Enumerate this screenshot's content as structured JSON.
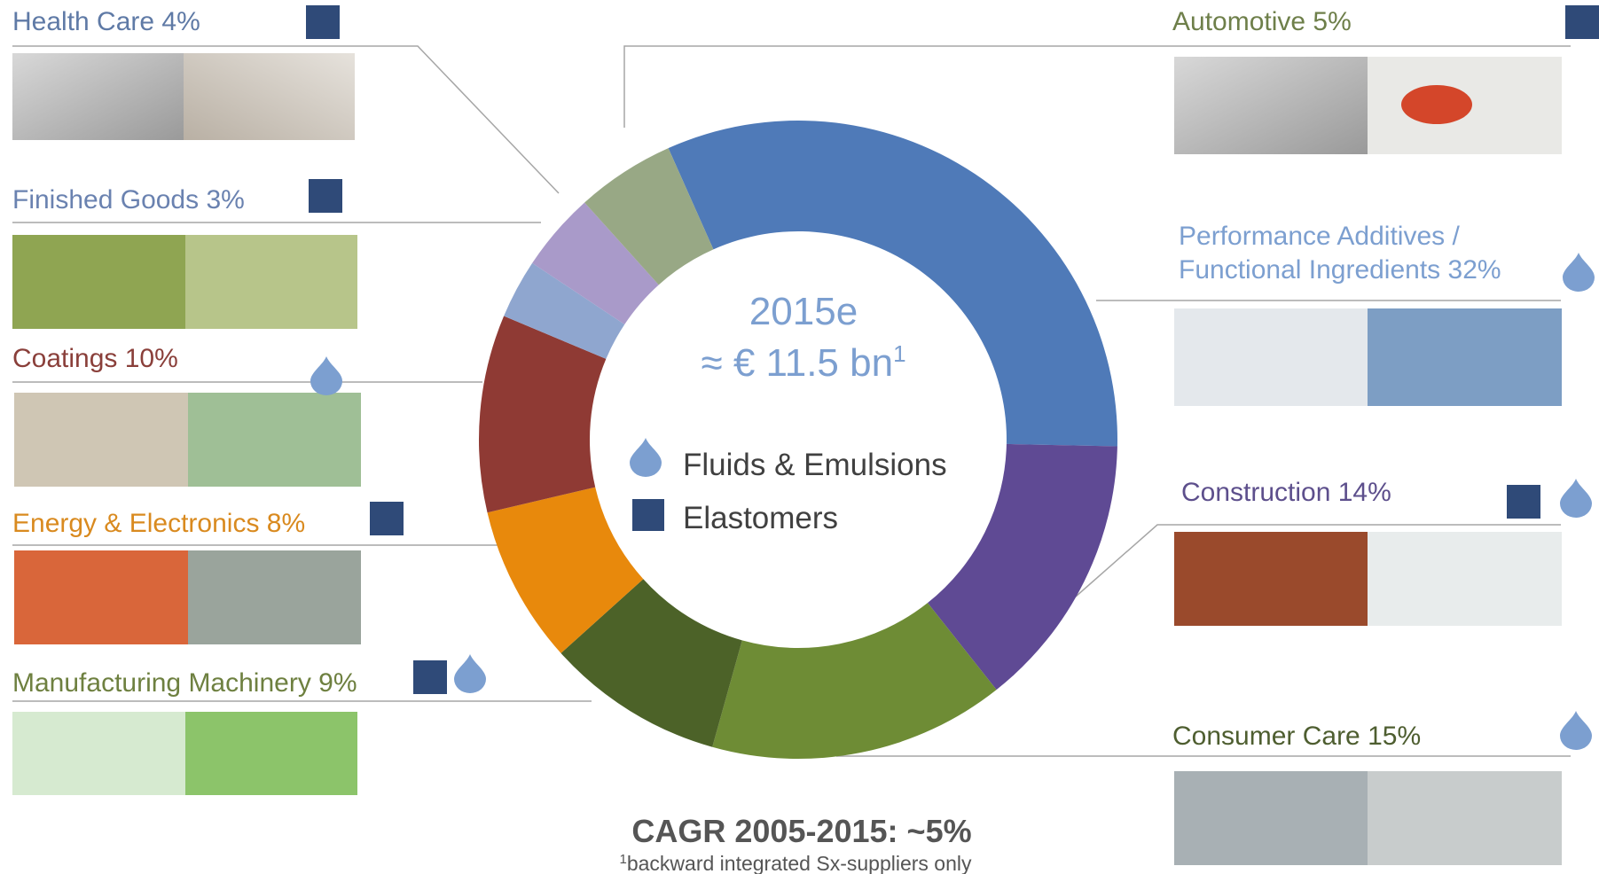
{
  "chart_data": {
    "type": "donut",
    "center_title": "2015e",
    "center_value": "≈ € 11.5 bn",
    "center_value_note": "1",
    "categories": [
      "Performance Additives / Functional Ingredients 32%",
      "Construction 14%",
      "Consumer Care 15%",
      "Manufacturing Machinery 9%",
      "Energy & Electronics 8%",
      "Coatings 10%",
      "Finished Goods 3%",
      "Health Care 4%",
      "Automotive 5%"
    ],
    "values": [
      32,
      14,
      15,
      9,
      8,
      10,
      3,
      4,
      5
    ],
    "colors": [
      "#4f7ab8",
      "#5f4a94",
      "#6e8c35",
      "#4c6228",
      "#e8890c",
      "#8f3a34",
      "#8fa6cf",
      "#a99ac9",
      "#98a885"
    ],
    "label_colors": [
      "#7c9fd0",
      "#5d4f8c",
      "#4e5e30",
      "#6e8040",
      "#d98a1f",
      "#8a3f3a",
      "#6a82b0",
      "#5f7aa6",
      "#6e7f4a"
    ],
    "legend": [
      "Fluids & Emulsions",
      "Elastomers"
    ],
    "footer": "CAGR 2005-2015: ~5%",
    "footnote_mark": "1",
    "footnote": "backward integrated Sx-suppliers only"
  }
}
